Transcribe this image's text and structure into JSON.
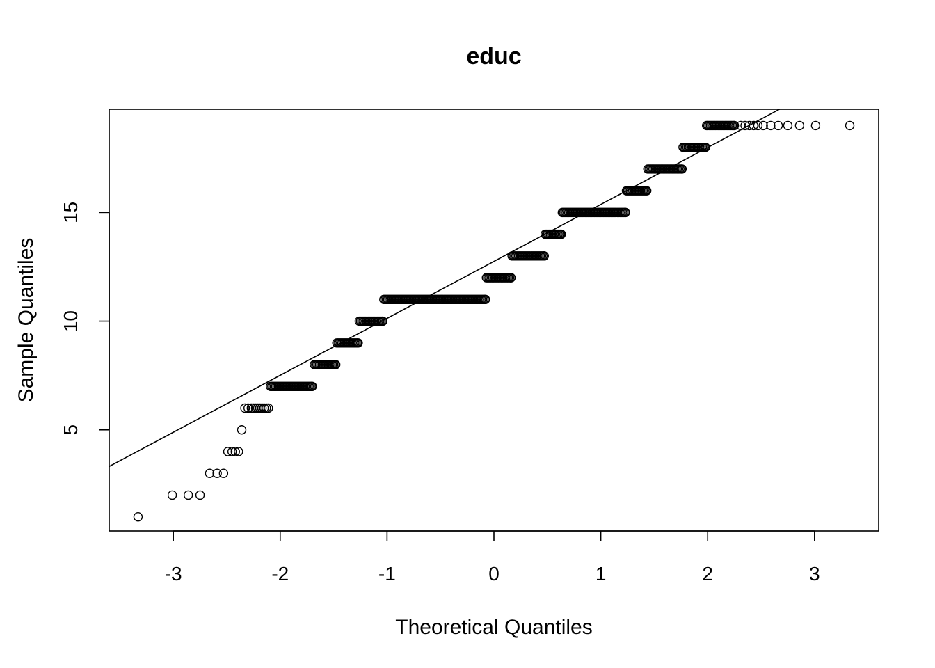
{
  "chart_data": {
    "type": "scatter",
    "title": "educ",
    "xlabel": "Theoretical Quantiles",
    "ylabel": "Sample Quantiles",
    "xlim": [
      -3.6,
      3.6
    ],
    "ylim": [
      0.35,
      19.75
    ],
    "x_ticks": [
      -3,
      -2,
      -1,
      0,
      1,
      2,
      3
    ],
    "x_tick_labels": [
      "-3",
      "-2",
      "-1",
      "0",
      "1",
      "2",
      "3"
    ],
    "y_ticks": [
      5,
      10,
      15
    ],
    "y_tick_labels": [
      "5",
      "10",
      "15"
    ],
    "grid": false,
    "legend": "none",
    "marker": "open-circle",
    "colors": {
      "points": "#000000",
      "line": "#000000",
      "axes": "#000000",
      "background": "#ffffff"
    },
    "reference_line": {
      "slope": 2.62,
      "intercept": 12.75
    },
    "bands": [
      {
        "y": 1,
        "x": [
          -3.33
        ]
      },
      {
        "y": 2,
        "x": [
          -3.01,
          -2.86,
          -2.75
        ]
      },
      {
        "y": 3,
        "x": [
          -2.66,
          -2.59,
          -2.53
        ]
      },
      {
        "y": 4,
        "x": [
          -2.49,
          -2.45,
          -2.42,
          -2.39
        ]
      },
      {
        "y": 5,
        "x": [
          -2.36
        ]
      },
      {
        "y": 6,
        "x": [
          -2.33,
          -2.3,
          -2.27,
          -2.25,
          -2.23,
          -2.21,
          -2.19,
          -2.17,
          -2.15,
          -2.13,
          -2.11
        ]
      },
      {
        "y": 7,
        "x_from": -2.09,
        "x_to": -1.7
      },
      {
        "y": 8,
        "x_from": -1.68,
        "x_to": -1.48
      },
      {
        "y": 9,
        "x_from": -1.47,
        "x_to": -1.27
      },
      {
        "y": 10,
        "x_from": -1.26,
        "x_to": -1.04
      },
      {
        "y": 11,
        "x_from": -1.03,
        "x_to": -0.08
      },
      {
        "y": 12,
        "x_from": -0.07,
        "x_to": 0.16
      },
      {
        "y": 13,
        "x_from": 0.17,
        "x_to": 0.47
      },
      {
        "y": 14,
        "x_from": 0.48,
        "x_to": 0.63
      },
      {
        "y": 15,
        "x_from": 0.64,
        "x_to": 1.23
      },
      {
        "y": 16,
        "x_from": 1.24,
        "x_to": 1.43
      },
      {
        "y": 17,
        "x_from": 1.44,
        "x_to": 1.76
      },
      {
        "y": 18,
        "x_from": 1.77,
        "x_to": 1.98
      },
      {
        "y": 19,
        "x_from": 1.99,
        "x_to": 2.25
      },
      {
        "y": 19,
        "x": [
          2.31,
          2.35,
          2.39,
          2.43,
          2.47,
          2.52,
          2.59,
          2.66,
          2.75,
          2.86,
          3.01,
          3.33
        ]
      }
    ]
  }
}
